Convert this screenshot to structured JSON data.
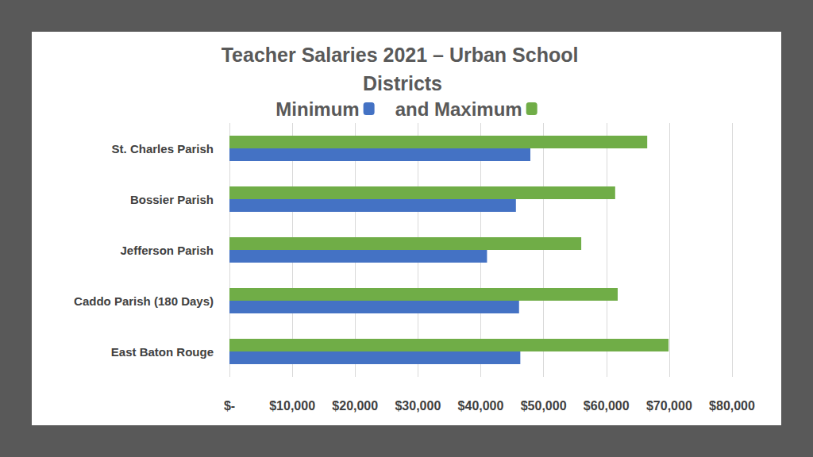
{
  "chart_data": {
    "type": "bar",
    "title": "Teacher Salaries 2021 – Urban School Districts",
    "orientation": "horizontal",
    "categories": [
      "St. Charles Parish",
      "Bossier Parish",
      "Jefferson Parish",
      "Caddo Parish (180 Days)",
      "East Baton Rouge"
    ],
    "series": [
      {
        "name": "Minimum",
        "color": "#4472c4",
        "values": [
          47900,
          45600,
          41000,
          46100,
          46300
        ]
      },
      {
        "name": "and Maximum",
        "color": "#70ad47",
        "values": [
          66500,
          61400,
          56000,
          61800,
          69900
        ]
      }
    ],
    "xlim": [
      0,
      80000
    ],
    "xticks": [
      {
        "value": 0,
        "label": "$-"
      },
      {
        "value": 10000,
        "label": "$10,000"
      },
      {
        "value": 20000,
        "label": "$20,000"
      },
      {
        "value": 30000,
        "label": "$30,000"
      },
      {
        "value": 40000,
        "label": "$40,000"
      },
      {
        "value": 50000,
        "label": "$50,000"
      },
      {
        "value": 60000,
        "label": "$60,000"
      },
      {
        "value": 70000,
        "label": "$70,000"
      },
      {
        "value": 80000,
        "label": "$80,000"
      }
    ],
    "grid": true,
    "legend": "top"
  }
}
